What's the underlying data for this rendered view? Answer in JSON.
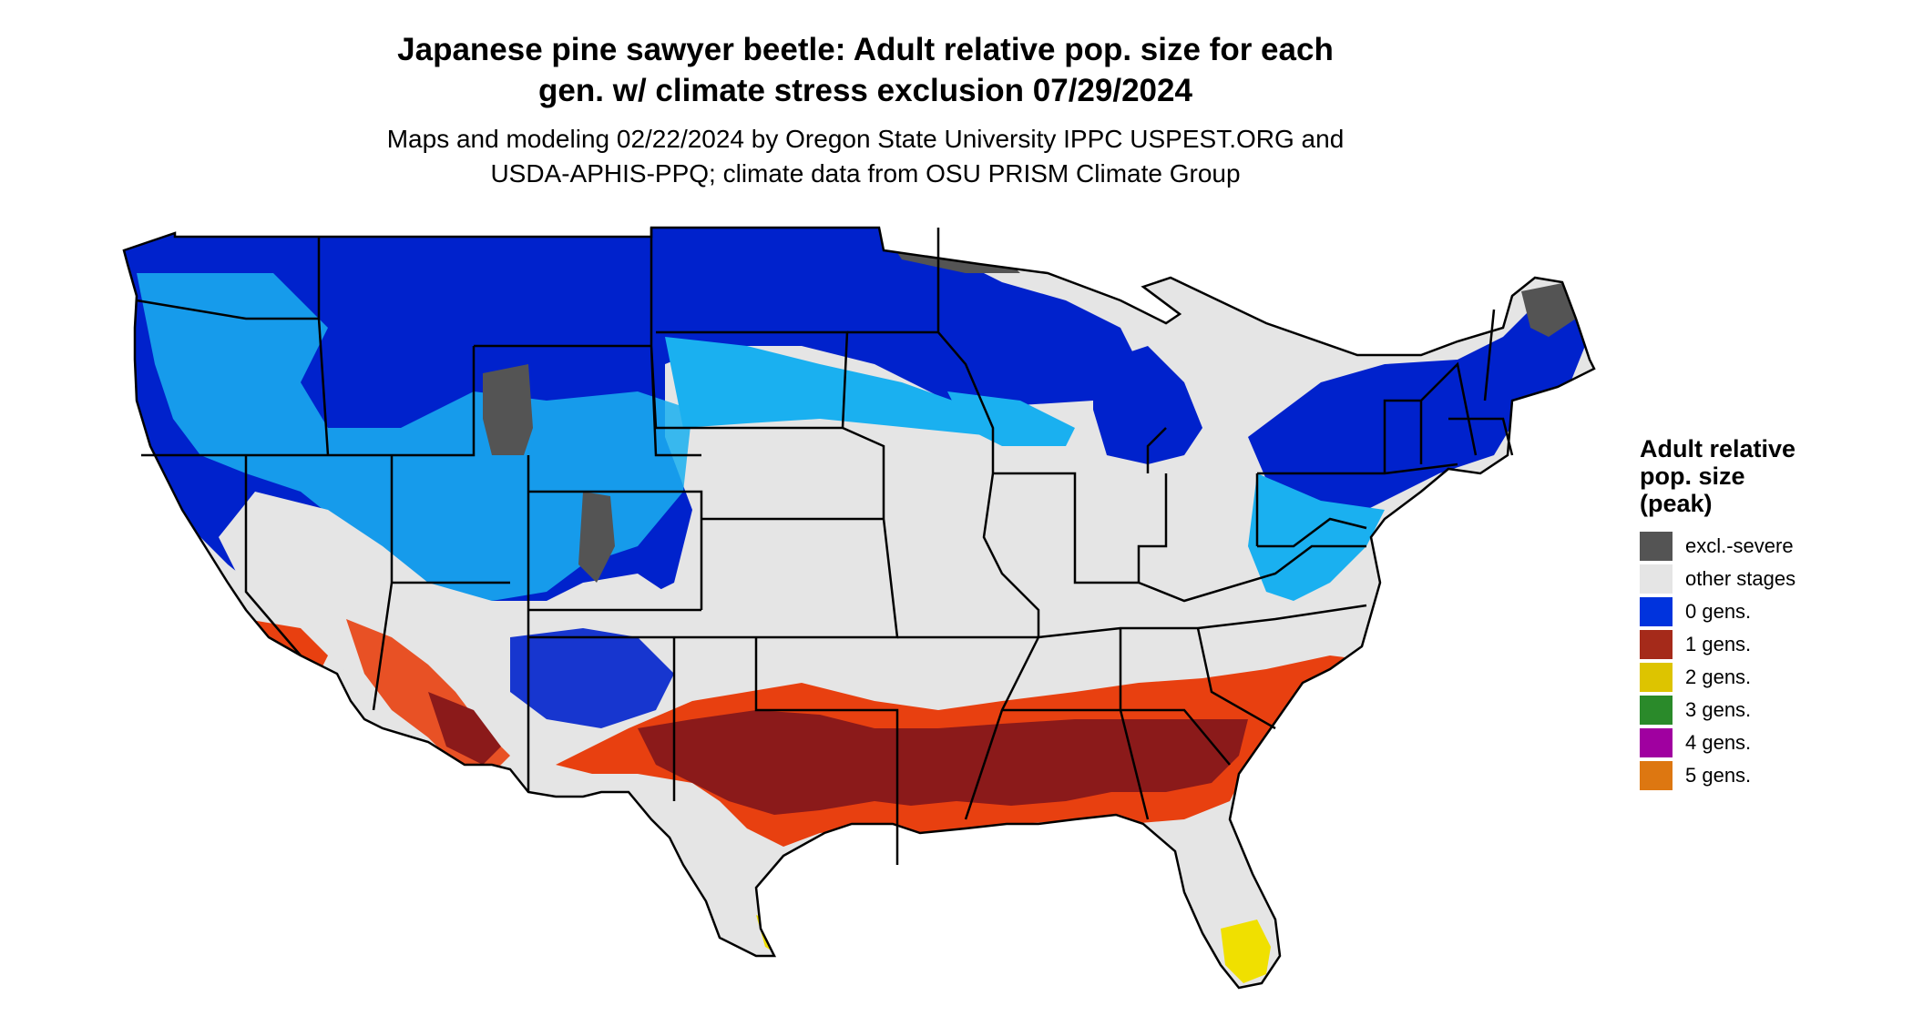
{
  "title_line1": "Japanese pine sawyer beetle: Adult relative pop. size for each",
  "title_line2": "gen. w/ climate stress exclusion 07/29/2024",
  "subtitle_line1": "Maps and modeling 02/22/2024 by Oregon State University IPPC USPEST.ORG and",
  "subtitle_line2": "USDA-APHIS-PPQ; climate data from OSU PRISM Climate Group",
  "legend": {
    "title_line1": "Adult relative",
    "title_line2": "pop. size",
    "title_line3": "(peak)",
    "items": [
      {
        "label": "excl.-severe",
        "color": "#545454"
      },
      {
        "label": "other stages",
        "color": "#e5e5e5"
      },
      {
        "label": "0 gens.",
        "color": "#0033dd"
      },
      {
        "label": "1 gens.",
        "color": "#a52a1a"
      },
      {
        "label": "2 gens.",
        "color": "#ddc400"
      },
      {
        "label": "3 gens.",
        "color": "#2a8a2a"
      },
      {
        "label": "4 gens.",
        "color": "#a000a0"
      },
      {
        "label": "5 gens.",
        "color": "#dd7711"
      }
    ]
  },
  "map_colors": {
    "background": "#e5e5e5",
    "dark_blue": "#0022cc",
    "light_blue": "#1ab0f0",
    "dark_red": "#8b1a1a",
    "orange_red": "#e84010",
    "yellow": "#f0e000",
    "gray": "#545454",
    "border": "#000000"
  }
}
